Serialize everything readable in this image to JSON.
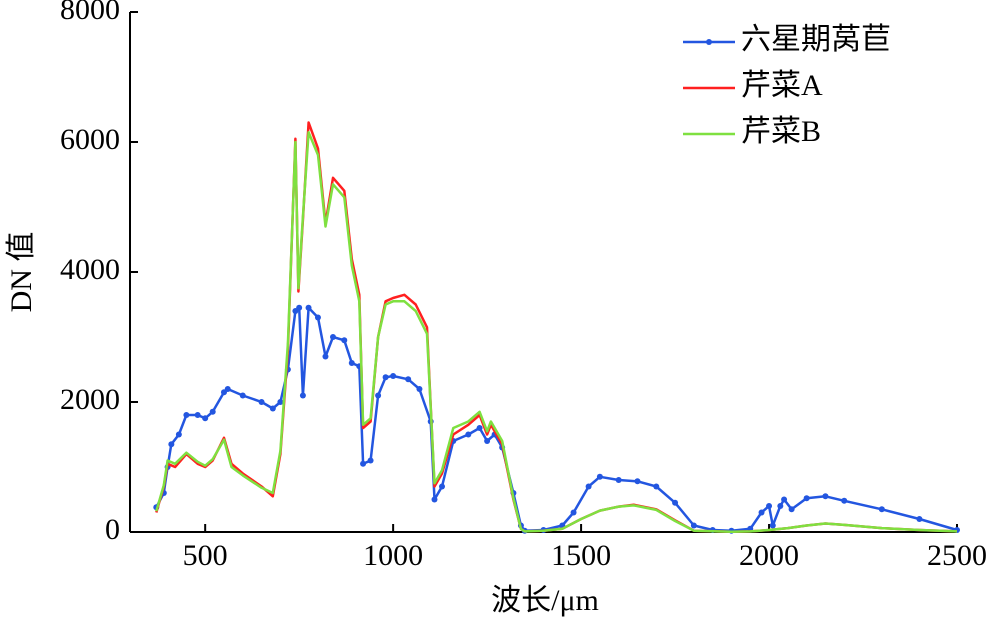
{
  "chart_data": {
    "type": "line",
    "x_label": "波长/μm",
    "y_label": "DN 值",
    "xlim": [
      300,
      2500
    ],
    "xticks": [
      500,
      1000,
      1500,
      2000,
      2500
    ],
    "ylim": [
      0,
      8000
    ],
    "yticks": [
      0,
      2000,
      4000,
      6000,
      8000
    ],
    "legend": "upper right",
    "series": [
      {
        "name": "六星期莴苣",
        "color": "#2356e0",
        "marker": true,
        "x": [
          370,
          390,
          400,
          410,
          430,
          450,
          480,
          500,
          520,
          550,
          560,
          600,
          650,
          680,
          700,
          720,
          740,
          750,
          760,
          775,
          800,
          820,
          840,
          870,
          890,
          910,
          920,
          940,
          960,
          980,
          1000,
          1040,
          1070,
          1100,
          1110,
          1130,
          1160,
          1200,
          1230,
          1250,
          1270,
          1290,
          1320,
          1340,
          1350,
          1400,
          1450,
          1480,
          1520,
          1550,
          1600,
          1650,
          1700,
          1750,
          1800,
          1850,
          1900,
          1950,
          1980,
          2000,
          2010,
          2030,
          2040,
          2060,
          2100,
          2150,
          2200,
          2300,
          2400,
          2500
        ],
        "values": [
          380,
          600,
          1000,
          1350,
          1500,
          1800,
          1800,
          1750,
          1850,
          2150,
          2200,
          2100,
          2000,
          1900,
          2000,
          2500,
          3400,
          3450,
          2100,
          3450,
          3300,
          2700,
          3000,
          2950,
          2600,
          2550,
          1050,
          1100,
          2100,
          2380,
          2400,
          2350,
          2200,
          1700,
          500,
          700,
          1400,
          1500,
          1600,
          1400,
          1500,
          1300,
          600,
          100,
          20,
          30,
          100,
          300,
          700,
          850,
          800,
          780,
          700,
          450,
          100,
          30,
          20,
          50,
          300,
          400,
          100,
          400,
          500,
          350,
          520,
          550,
          480,
          350,
          200,
          30
        ]
      },
      {
        "name": "芹菜A",
        "color": "#ff2020",
        "marker": false,
        "x": [
          370,
          390,
          400,
          420,
          450,
          480,
          500,
          520,
          550,
          570,
          600,
          650,
          680,
          700,
          720,
          740,
          748,
          760,
          775,
          800,
          820,
          840,
          870,
          890,
          910,
          920,
          940,
          960,
          980,
          1000,
          1030,
          1060,
          1090,
          1110,
          1130,
          1160,
          1200,
          1230,
          1250,
          1260,
          1290,
          1320,
          1340,
          1350,
          1400,
          1450,
          1500,
          1550,
          1600,
          1640,
          1700,
          1750,
          1800,
          1900,
          1950,
          2000,
          2050,
          2100,
          2150,
          2200,
          2300,
          2400,
          2500
        ],
        "values": [
          300,
          700,
          1050,
          1000,
          1200,
          1050,
          1000,
          1100,
          1450,
          1050,
          900,
          700,
          550,
          1200,
          2800,
          6050,
          3700,
          4800,
          6300,
          5900,
          4750,
          5450,
          5250,
          4200,
          3650,
          1600,
          1700,
          3000,
          3550,
          3600,
          3650,
          3500,
          3150,
          700,
          900,
          1500,
          1650,
          1800,
          1500,
          1650,
          1350,
          500,
          50,
          10,
          20,
          50,
          200,
          330,
          390,
          420,
          350,
          180,
          20,
          5,
          10,
          30,
          60,
          100,
          130,
          110,
          60,
          30,
          10
        ]
      },
      {
        "name": "芹菜B",
        "color": "#7fe040",
        "marker": false,
        "x": [
          370,
          390,
          400,
          420,
          450,
          480,
          500,
          520,
          550,
          570,
          600,
          650,
          680,
          700,
          720,
          740,
          748,
          760,
          775,
          800,
          820,
          840,
          870,
          890,
          910,
          920,
          940,
          960,
          980,
          1000,
          1030,
          1060,
          1090,
          1110,
          1130,
          1160,
          1200,
          1230,
          1250,
          1260,
          1290,
          1320,
          1340,
          1350,
          1400,
          1450,
          1500,
          1550,
          1600,
          1640,
          1700,
          1750,
          1800,
          1900,
          1950,
          2000,
          2050,
          2100,
          2150,
          2200,
          2300,
          2400,
          2500
        ],
        "values": [
          320,
          720,
          1100,
          1050,
          1220,
          1080,
          1020,
          1120,
          1420,
          1000,
          870,
          680,
          600,
          1250,
          2900,
          6000,
          3750,
          4850,
          6150,
          5800,
          4700,
          5350,
          5150,
          4100,
          3550,
          1650,
          1750,
          3000,
          3500,
          3550,
          3550,
          3400,
          3050,
          750,
          950,
          1600,
          1700,
          1850,
          1550,
          1700,
          1400,
          520,
          50,
          10,
          20,
          50,
          200,
          330,
          390,
          410,
          340,
          170,
          20,
          5,
          10,
          30,
          60,
          100,
          130,
          110,
          60,
          30,
          10
        ]
      }
    ]
  }
}
